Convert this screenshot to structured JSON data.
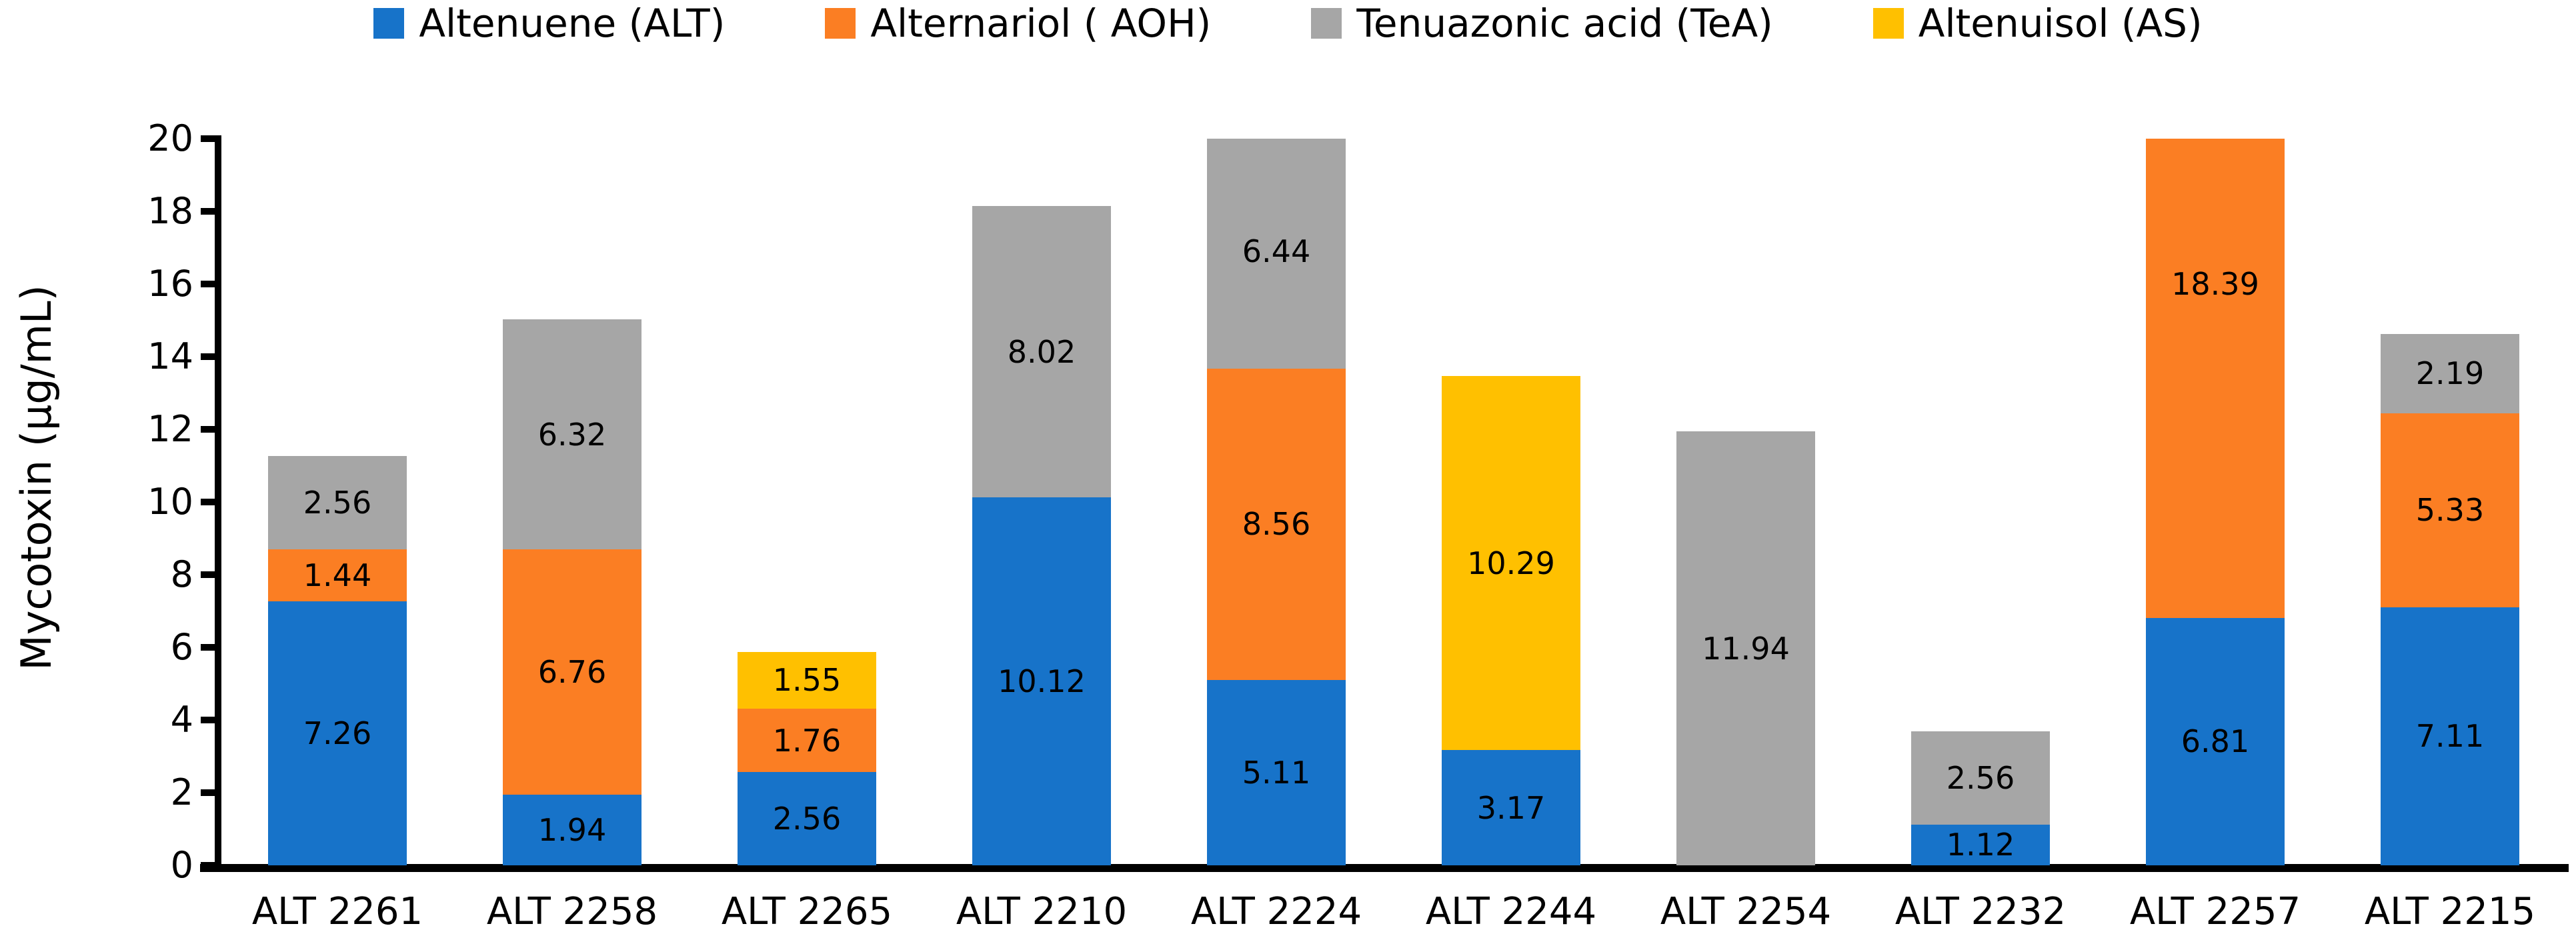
{
  "chart_data": {
    "type": "bar",
    "stacked": true,
    "title": "",
    "xlabel": "",
    "ylabel": "Mycotoxin (µg/mL)",
    "ylim": [
      0,
      20
    ],
    "ytick_step": 2,
    "grid": false,
    "legend_position": "top",
    "axis_color": "#000000",
    "categories": [
      "ALT 2261",
      "ALT 2258",
      "ALT 2265",
      "ALT 2210",
      "ALT 2224",
      "ALT 2244",
      "ALT 2254",
      "ALT 2232",
      "ALT 2257",
      "ALT 2215"
    ],
    "series": [
      {
        "name": "Altenuene (ALT)",
        "color": "#1773C9",
        "values": [
          7.26,
          1.94,
          2.56,
          10.12,
          5.11,
          3.17,
          0,
          1.12,
          6.81,
          7.11
        ]
      },
      {
        "name": "Alternariol ( AOH)",
        "color": "#FB7E23",
        "values": [
          1.44,
          6.76,
          1.76,
          0,
          8.56,
          0,
          0,
          0,
          18.39,
          5.33
        ]
      },
      {
        "name": "Tenuazonic acid (TeA)",
        "color": "#A6A6A6",
        "values": [
          2.56,
          6.32,
          0,
          8.02,
          6.44,
          0,
          11.94,
          2.56,
          0,
          2.19
        ]
      },
      {
        "name": "Altenuisol (AS)",
        "color": "#FFC000",
        "values": [
          0,
          0,
          1.55,
          0,
          0,
          10.29,
          0,
          0,
          0,
          0
        ]
      }
    ],
    "data_labels_shown": true
  }
}
